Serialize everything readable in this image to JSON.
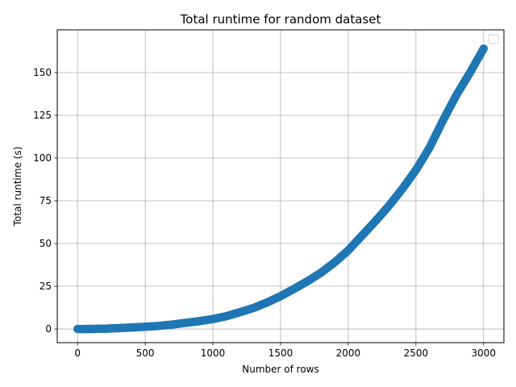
{
  "chart_data": {
    "type": "scatter",
    "title": "Total runtime for random dataset",
    "xlabel": "Number of rows",
    "ylabel": "Total runtime (s)",
    "xlim": [
      -150,
      3150
    ],
    "ylim": [
      -8,
      175
    ],
    "x_ticks": [
      0,
      500,
      1000,
      1500,
      2000,
      2500,
      3000
    ],
    "y_ticks": [
      0,
      25,
      50,
      75,
      100,
      125,
      150
    ],
    "grid": true,
    "legend": {
      "placement": "top-right",
      "entries": []
    },
    "series": [
      {
        "color": "#1f77b4",
        "x": [
          0,
          100,
          200,
          300,
          400,
          500,
          600,
          700,
          800,
          900,
          1000,
          1100,
          1200,
          1300,
          1400,
          1500,
          1600,
          1700,
          1800,
          1900,
          2000,
          2100,
          2200,
          2300,
          2400,
          2500,
          2600,
          2700,
          2800,
          2900,
          3000
        ],
        "y": [
          0,
          0.02,
          0.15,
          0.5,
          0.9,
          1.3,
          1.8,
          2.6,
          3.6,
          4.6,
          5.8,
          7.5,
          9.8,
          12.3,
          15.5,
          19.2,
          23.5,
          28.0,
          33.0,
          39.0,
          46.0,
          54.5,
          63.0,
          72.0,
          82.0,
          93.0,
          106.0,
          122.0,
          137.0,
          150.0,
          164.0
        ]
      }
    ]
  }
}
